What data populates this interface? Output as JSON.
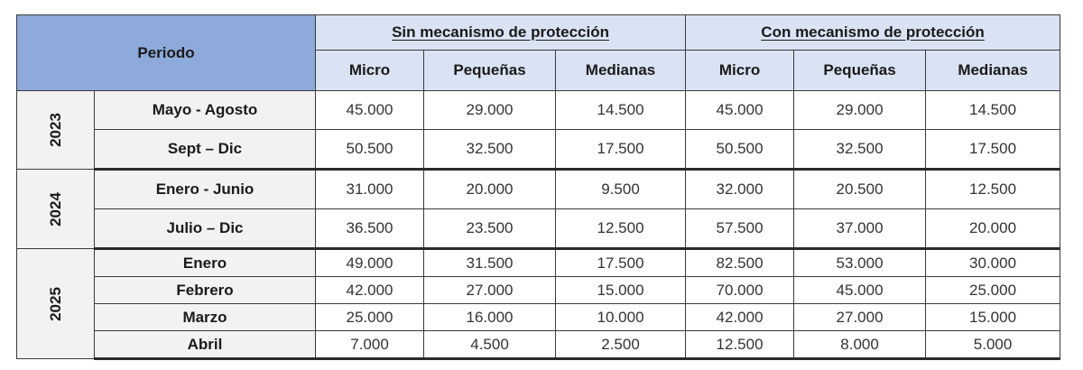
{
  "header": {
    "periodo_label": "Periodo",
    "group_without": "Sin mecanismo de protección",
    "group_with": "Con mecanismo de protección",
    "sub_micro": "Micro",
    "sub_pequenas": "Pequeñas",
    "sub_medianas": "Medianas"
  },
  "years": [
    {
      "year": "2023",
      "rows": [
        {
          "period": "Mayo - Agosto",
          "values": [
            "45.000",
            "29.000",
            "14.500",
            "45.000",
            "29.000",
            "14.500"
          ]
        },
        {
          "period": "Sept – Dic",
          "values": [
            "50.500",
            "32.500",
            "17.500",
            "50.500",
            "32.500",
            "17.500"
          ]
        }
      ]
    },
    {
      "year": "2024",
      "rows": [
        {
          "period": "Enero - Junio",
          "values": [
            "31.000",
            "20.000",
            "9.500",
            "32.000",
            "20.500",
            "12.500"
          ]
        },
        {
          "period": "Julio – Dic",
          "values": [
            "36.500",
            "23.500",
            "12.500",
            "57.500",
            "37.000",
            "20.000"
          ]
        }
      ]
    },
    {
      "year": "2025",
      "rows": [
        {
          "period": "Enero",
          "values": [
            "49.000",
            "31.500",
            "17.500",
            "82.500",
            "53.000",
            "30.000"
          ]
        },
        {
          "period": "Febrero",
          "values": [
            "42.000",
            "27.000",
            "15.000",
            "70.000",
            "45.000",
            "25.000"
          ]
        },
        {
          "period": "Marzo",
          "values": [
            "25.000",
            "16.000",
            "10.000",
            "42.000",
            "27.000",
            "15.000"
          ]
        },
        {
          "period": "Abril",
          "values": [
            "7.000",
            "4.500",
            "2.500",
            "12.500",
            "8.000",
            "5.000"
          ]
        }
      ]
    }
  ]
}
